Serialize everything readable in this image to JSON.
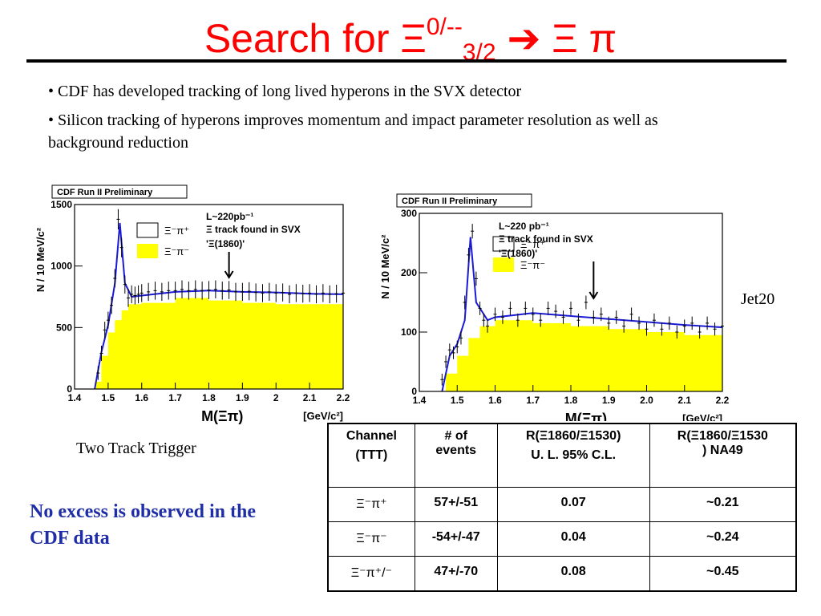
{
  "title": {
    "prefix": "Search for ",
    "xi": "Ξ",
    "sup": "0/--",
    "sub": "3/2",
    "arrow": "➔",
    "final": " Ξ π"
  },
  "bullets": [
    "• CDF has developed tracking of long lived hyperons in the SVX detector",
    "• Silicon tracking of hyperons improves momentum and impact parameter resolution as well as background reduction"
  ],
  "label_left": "Two Track Trigger",
  "label_right": "Jet20",
  "conclusion": "No excess is observed in the CDF data",
  "colors": {
    "title": "#ff0000",
    "fit": "#1a1ad6",
    "fill": "#ffff00",
    "conclusion": "#1f2ea6"
  },
  "table": {
    "headers": [
      {
        "line1": "Channel",
        "line2": "(TTT)"
      },
      {
        "line1": "# of",
        "line2": "events"
      },
      {
        "line1": "R(Ξ1860/Ξ1530)",
        "line2": "U. L. 95% C.L."
      },
      {
        "line1": "R(Ξ1860/Ξ1530",
        "line2": ") NA49"
      }
    ],
    "rows": [
      {
        "channel": "Ξ⁻π⁺",
        "events": "57+/-51",
        "ul": "0.07",
        "na49": "~0.21"
      },
      {
        "channel": "Ξ⁻π⁻",
        "events": "-54+/-47",
        "ul": "0.04",
        "na49": "~0.24"
      },
      {
        "channel": "Ξ⁻π⁺/⁻",
        "events": "47+/-70",
        "ul": "0.08",
        "na49": "~0.45"
      }
    ]
  },
  "chart_data": [
    {
      "type": "bar",
      "preliminary": "CDF Run II Preliminary",
      "ylabel": "N / 10 MeV/c²",
      "xlabel": "M(Ξπ)",
      "xunit": "[GeV/c²]",
      "xlim": [
        1.4,
        2.2
      ],
      "ylim": [
        0,
        1500
      ],
      "xticks": [
        "1.4",
        "1.5",
        "1.6",
        "1.7",
        "1.8",
        "1.9",
        "2",
        "2.1",
        "2.2"
      ],
      "yticks": [
        "0",
        "500",
        "1000",
        "1500"
      ],
      "lumi": "L~220pb⁻¹",
      "track_text": "Ξ track found in SVX",
      "marker": "'Ξ(1860)'",
      "marker_x": 1.86,
      "legend_os": "Ξ⁻π⁺",
      "legend_ss": "Ξ⁻π⁻",
      "points": [
        [
          1.47,
          130
        ],
        [
          1.48,
          290
        ],
        [
          1.49,
          480
        ],
        [
          1.5,
          560
        ],
        [
          1.51,
          680
        ],
        [
          1.52,
          900
        ],
        [
          1.53,
          1380
        ],
        [
          1.54,
          1150
        ],
        [
          1.55,
          850
        ],
        [
          1.56,
          740
        ],
        [
          1.57,
          770
        ],
        [
          1.58,
          760
        ],
        [
          1.59,
          770
        ],
        [
          1.6,
          780
        ],
        [
          1.62,
          790
        ],
        [
          1.64,
          800
        ],
        [
          1.66,
          790
        ],
        [
          1.68,
          800
        ],
        [
          1.7,
          800
        ],
        [
          1.72,
          810
        ],
        [
          1.74,
          800
        ],
        [
          1.76,
          810
        ],
        [
          1.78,
          800
        ],
        [
          1.8,
          805
        ],
        [
          1.82,
          810
        ],
        [
          1.84,
          800
        ],
        [
          1.86,
          805
        ],
        [
          1.88,
          790
        ],
        [
          1.9,
          790
        ],
        [
          1.92,
          795
        ],
        [
          1.94,
          785
        ],
        [
          1.96,
          780
        ],
        [
          1.98,
          790
        ],
        [
          2.0,
          780
        ],
        [
          2.02,
          785
        ],
        [
          2.04,
          770
        ],
        [
          2.06,
          780
        ],
        [
          2.08,
          775
        ],
        [
          2.1,
          780
        ],
        [
          2.12,
          770
        ],
        [
          2.14,
          780
        ],
        [
          2.16,
          770
        ],
        [
          2.18,
          775
        ],
        [
          2.2,
          780
        ]
      ],
      "fit": [
        [
          1.46,
          0
        ],
        [
          1.48,
          300
        ],
        [
          1.5,
          520
        ],
        [
          1.52,
          860
        ],
        [
          1.535,
          1350
        ],
        [
          1.55,
          860
        ],
        [
          1.57,
          750
        ],
        [
          1.6,
          760
        ],
        [
          1.7,
          790
        ],
        [
          1.8,
          800
        ],
        [
          1.9,
          790
        ],
        [
          2.0,
          785
        ],
        [
          2.1,
          775
        ],
        [
          2.2,
          770
        ]
      ],
      "fill": [
        [
          1.4,
          0
        ],
        [
          1.45,
          0
        ],
        [
          1.46,
          60
        ],
        [
          1.48,
          270
        ],
        [
          1.5,
          460
        ],
        [
          1.52,
          560
        ],
        [
          1.54,
          640
        ],
        [
          1.56,
          690
        ],
        [
          1.6,
          700
        ],
        [
          1.7,
          740
        ],
        [
          1.8,
          720
        ],
        [
          1.9,
          700
        ],
        [
          2.0,
          690
        ],
        [
          2.1,
          690
        ],
        [
          2.2,
          680
        ]
      ]
    },
    {
      "type": "bar",
      "preliminary": "CDF Run II Preliminary",
      "ylabel": "N / 10 MeV/c²",
      "xlabel": "M(Ξπ)",
      "xunit": "[GeV/c²]",
      "xlim": [
        1.4,
        2.2
      ],
      "ylim": [
        0,
        300
      ],
      "xticks": [
        "1.4",
        "1.5",
        "1.6",
        "1.7",
        "1.8",
        "1.9",
        "2.0",
        "2.1",
        "2.2"
      ],
      "yticks": [
        "0",
        "100",
        "200",
        "300"
      ],
      "lumi": "L~220 pb⁻¹",
      "track_text": "Ξ track found in SVX",
      "marker": "'Ξ(1860)'",
      "marker_x": 1.86,
      "legend_os": "Ξ⁻π⁺",
      "legend_ss": "Ξ⁻π⁻",
      "points": [
        [
          1.46,
          20
        ],
        [
          1.47,
          50
        ],
        [
          1.48,
          70
        ],
        [
          1.49,
          65
        ],
        [
          1.5,
          75
        ],
        [
          1.51,
          90
        ],
        [
          1.52,
          150
        ],
        [
          1.53,
          230
        ],
        [
          1.54,
          270
        ],
        [
          1.55,
          190
        ],
        [
          1.56,
          140
        ],
        [
          1.57,
          120
        ],
        [
          1.58,
          110
        ],
        [
          1.6,
          130
        ],
        [
          1.62,
          125
        ],
        [
          1.64,
          140
        ],
        [
          1.66,
          120
        ],
        [
          1.68,
          140
        ],
        [
          1.7,
          130
        ],
        [
          1.72,
          120
        ],
        [
          1.74,
          140
        ],
        [
          1.76,
          135
        ],
        [
          1.78,
          125
        ],
        [
          1.8,
          140
        ],
        [
          1.82,
          120
        ],
        [
          1.84,
          150
        ],
        [
          1.86,
          125
        ],
        [
          1.88,
          130
        ],
        [
          1.9,
          115
        ],
        [
          1.92,
          125
        ],
        [
          1.94,
          110
        ],
        [
          1.96,
          130
        ],
        [
          1.98,
          115
        ],
        [
          2.0,
          105
        ],
        [
          2.02,
          120
        ],
        [
          2.04,
          105
        ],
        [
          2.06,
          115
        ],
        [
          2.08,
          100
        ],
        [
          2.1,
          110
        ],
        [
          2.12,
          115
        ],
        [
          2.14,
          100
        ],
        [
          2.16,
          115
        ],
        [
          2.18,
          105
        ],
        [
          2.2,
          110
        ]
      ],
      "fit": [
        [
          1.46,
          0
        ],
        [
          1.48,
          60
        ],
        [
          1.5,
          80
        ],
        [
          1.52,
          120
        ],
        [
          1.535,
          260
        ],
        [
          1.55,
          150
        ],
        [
          1.58,
          120
        ],
        [
          1.6,
          125
        ],
        [
          1.7,
          132
        ],
        [
          1.8,
          127
        ],
        [
          1.9,
          122
        ],
        [
          2.0,
          117
        ],
        [
          2.1,
          112
        ],
        [
          2.2,
          108
        ]
      ],
      "fill": [
        [
          1.4,
          0
        ],
        [
          1.46,
          0
        ],
        [
          1.47,
          30
        ],
        [
          1.5,
          60
        ],
        [
          1.53,
          90
        ],
        [
          1.56,
          110
        ],
        [
          1.6,
          120
        ],
        [
          1.7,
          115
        ],
        [
          1.8,
          110
        ],
        [
          1.9,
          105
        ],
        [
          2.0,
          100
        ],
        [
          2.1,
          95
        ],
        [
          2.2,
          95
        ]
      ]
    }
  ]
}
